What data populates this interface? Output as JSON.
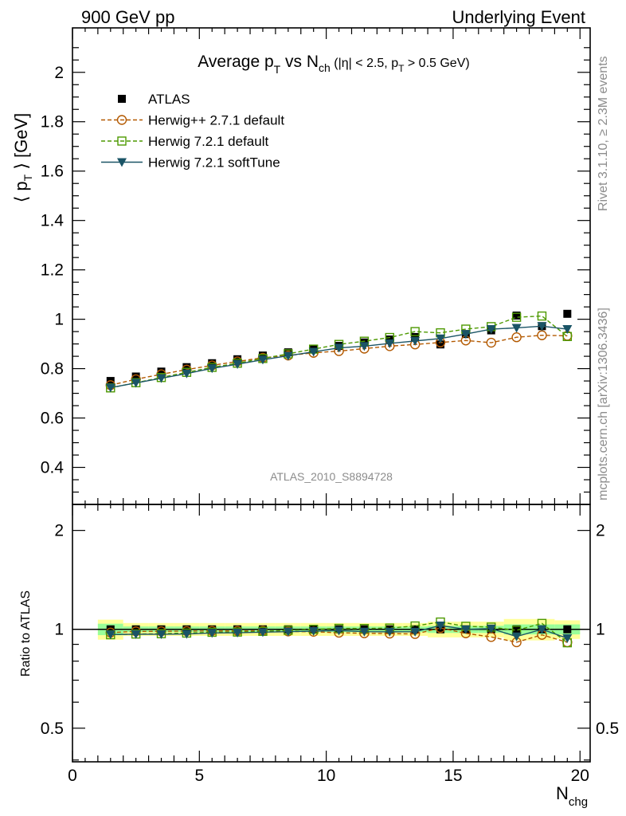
{
  "header": {
    "left": "900 GeV pp",
    "right": "Underlying Event"
  },
  "side_text": {
    "rivet": "Rivet 3.1.10, ≥ 2.3M events",
    "mcplots": "mcplots.cern.ch [arXiv:1306.3436]"
  },
  "chart_data": {
    "type": "scatter",
    "title": "Average p_T vs N_ch (|η| < 2.5, p_T > 0.5 GeV)",
    "title_parts": {
      "main1": "Average p",
      "sub1": "T",
      "main2": " vs N",
      "sub2": "ch",
      "cond1": " (|η| < 2.5, p",
      "cond_sub": "T",
      "cond2": " > 0.5 GeV)"
    },
    "watermark": "ATLAS_2010_S8894728",
    "xlabel": "N_chg",
    "xlabel_parts": {
      "main": "N",
      "sub": "chg"
    },
    "ylabel": "⟨ p_T ⟩ [GeV]",
    "ylabel_parts": {
      "pre": "⟨ p",
      "sub": "T",
      "post": " ⟩ [GeV]"
    },
    "ratio_ylabel": "Ratio to ATLAS",
    "xlim": [
      0,
      20.4
    ],
    "ylim": [
      0.25,
      2.18
    ],
    "ratio_ylim": [
      0.395,
      2.4
    ],
    "xticks": [
      0,
      5,
      10,
      15,
      20
    ],
    "yticks": [
      0.4,
      0.6,
      0.8,
      1,
      1.2,
      1.4,
      1.6,
      1.8,
      2
    ],
    "ratio_yticks": [
      0.5,
      1,
      2
    ],
    "legend_position": "top-left",
    "x": [
      1.5,
      2.5,
      3.5,
      4.5,
      5.5,
      6.5,
      7.5,
      8.5,
      9.5,
      10.5,
      11.5,
      12.5,
      13.5,
      14.5,
      15.5,
      16.5,
      17.5,
      18.5,
      19.5
    ],
    "series": [
      {
        "name": "ATLAS",
        "color": "#000000",
        "marker": "filled-square",
        "values": [
          0.75,
          0.768,
          0.788,
          0.806,
          0.822,
          0.838,
          0.853,
          0.866,
          0.879,
          0.892,
          0.906,
          0.918,
          0.928,
          0.898,
          0.94,
          0.955,
          1.015,
          0.972,
          1.022
        ]
      },
      {
        "name": "Herwig++ 2.7.1 default",
        "color": "#b35900",
        "marker": "open-circle",
        "dashed": true,
        "values": [
          0.733,
          0.757,
          0.777,
          0.796,
          0.813,
          0.829,
          0.844,
          0.853,
          0.864,
          0.871,
          0.881,
          0.891,
          0.898,
          0.906,
          0.914,
          0.905,
          0.927,
          0.935,
          0.933
        ]
      },
      {
        "name": "Herwig 7.2.1 default",
        "color": "#4d9900",
        "marker": "open-square",
        "dashed": true,
        "values": [
          0.722,
          0.743,
          0.764,
          0.785,
          0.805,
          0.822,
          0.841,
          0.86,
          0.879,
          0.898,
          0.911,
          0.926,
          0.95,
          0.945,
          0.96,
          0.97,
          1.008,
          1.013,
          0.93
        ]
      },
      {
        "name": "Herwig 7.2.1 softTune",
        "color": "#1a5466",
        "marker": "filled-triangle-down",
        "dashed": false,
        "values": [
          0.723,
          0.742,
          0.761,
          0.78,
          0.801,
          0.818,
          0.836,
          0.852,
          0.868,
          0.884,
          0.891,
          0.902,
          0.912,
          0.922,
          0.94,
          0.96,
          0.965,
          0.972,
          0.96
        ]
      }
    ],
    "ratio_band_half_width_stat": [
      0.04,
      0.02,
      0.02,
      0.02,
      0.02,
      0.02,
      0.02,
      0.02,
      0.02,
      0.02,
      0.02,
      0.02,
      0.02,
      0.025,
      0.025,
      0.025,
      0.035,
      0.035,
      0.035
    ],
    "ratio_band_half_width_total": [
      0.07,
      0.045,
      0.045,
      0.045,
      0.045,
      0.045,
      0.045,
      0.045,
      0.045,
      0.045,
      0.045,
      0.045,
      0.045,
      0.055,
      0.055,
      0.055,
      0.075,
      0.075,
      0.065
    ],
    "band_colors": {
      "total": "#ffff99",
      "stat": "#99ff99"
    }
  }
}
